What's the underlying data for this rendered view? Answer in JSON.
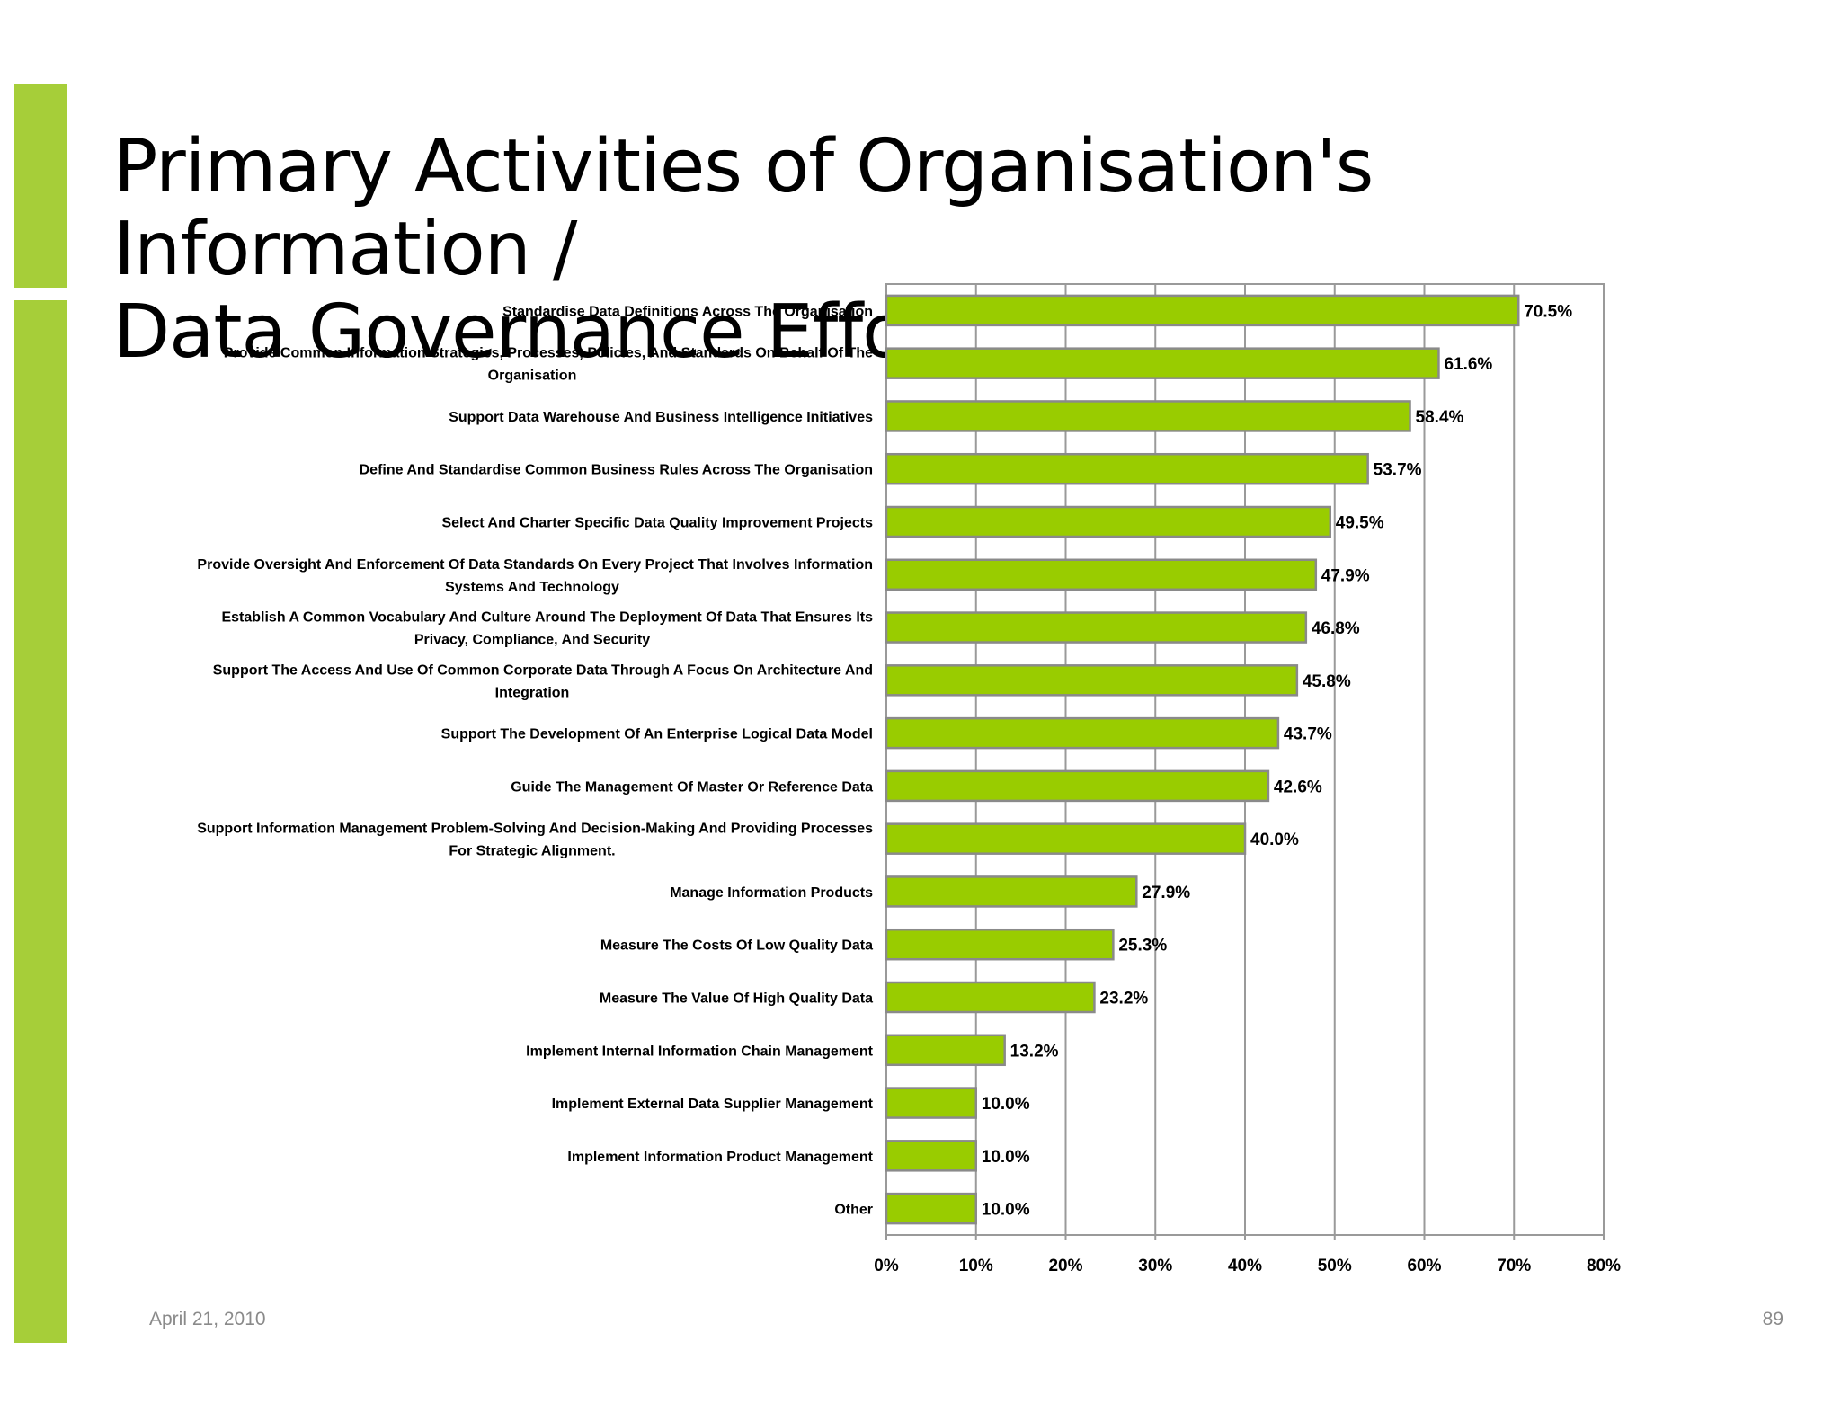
{
  "slide": {
    "title_line1": "Primary Activities of Organisation's Information /",
    "title_line2": "Data Governance Efforts",
    "date": "April 21, 2010",
    "page_number": "89",
    "accent_color": "#a6ce39"
  },
  "chart_data": {
    "type": "bar",
    "orientation": "horizontal",
    "bar_color": "#99cc00",
    "xlim": [
      0,
      80
    ],
    "x_ticks": [
      "0%",
      "10%",
      "20%",
      "30%",
      "40%",
      "50%",
      "60%",
      "70%",
      "80%"
    ],
    "grid": true,
    "categories": [
      "Standardise Data Definitions Across The Organisation",
      "Provide Common Information Strategies, Processes, Policies, And Standards On Behalf Of The Organisation",
      "Support Data Warehouse And Business Intelligence Initiatives",
      "Define And Standardise Common Business Rules Across The Organisation",
      "Select And Charter Specific Data Quality Improvement Projects",
      "Provide Oversight And Enforcement Of Data Standards On Every Project That Involves Information Systems And Technology",
      "Establish A Common Vocabulary And Culture Around The Deployment Of Data That Ensures Its Privacy, Compliance, And Security",
      "Support The Access And Use Of Common Corporate Data Through A Focus On Architecture And Integration",
      "Support The Development Of An Enterprise Logical Data Model",
      "Guide The Management Of Master Or Reference Data",
      "Support Information Management Problem-Solving And Decision-Making And Providing Processes For Strategic Alignment.",
      "Manage Information Products",
      "Measure The Costs Of Low Quality Data",
      "Measure The Value Of High Quality Data",
      "Implement Internal Information Chain Management",
      "Implement External Data Supplier Management",
      "Implement Information Product Management",
      "Other"
    ],
    "label_lines": [
      [
        "Standardise Data Definitions Across The Organisation"
      ],
      [
        "Provide Common Information Strategies, Processes, Policies, And Standards On Behalf Of The",
        "Organisation"
      ],
      [
        "Support Data Warehouse And Business Intelligence Initiatives"
      ],
      [
        "Define And Standardise Common Business Rules Across The Organisation"
      ],
      [
        "Select And Charter Specific Data Quality Improvement Projects"
      ],
      [
        "Provide Oversight And Enforcement Of Data Standards On Every Project That Involves Information",
        "Systems And Technology"
      ],
      [
        "Establish A Common Vocabulary And Culture Around The Deployment Of Data That Ensures Its",
        "Privacy, Compliance, And Security"
      ],
      [
        "Support The Access And Use Of Common Corporate Data Through A Focus On Architecture And",
        "Integration"
      ],
      [
        "Support The Development Of An Enterprise Logical Data Model"
      ],
      [
        "Guide The Management Of Master Or Reference Data"
      ],
      [
        "Support Information Management Problem-Solving And Decision-Making And Providing Processes",
        "For Strategic Alignment."
      ],
      [
        "Manage Information Products"
      ],
      [
        "Measure The Costs Of Low Quality Data"
      ],
      [
        "Measure The Value Of High Quality Data"
      ],
      [
        "Implement Internal Information Chain Management"
      ],
      [
        "Implement External Data Supplier Management"
      ],
      [
        "Implement Information Product Management"
      ],
      [
        "Other"
      ]
    ],
    "values": [
      70.5,
      61.6,
      58.4,
      53.7,
      49.5,
      47.9,
      46.8,
      45.8,
      43.7,
      42.6,
      40.0,
      27.9,
      25.3,
      23.2,
      13.2,
      10.0,
      10.0,
      10.0
    ],
    "value_labels": [
      "70.5%",
      "61.6%",
      "58.4%",
      "53.7%",
      "49.5%",
      "47.9%",
      "46.8%",
      "45.8%",
      "43.7%",
      "42.6%",
      "40.0%",
      "27.9%",
      "25.3%",
      "23.2%",
      "13.2%",
      "10.0%",
      "10.0%",
      "10.0%"
    ]
  }
}
